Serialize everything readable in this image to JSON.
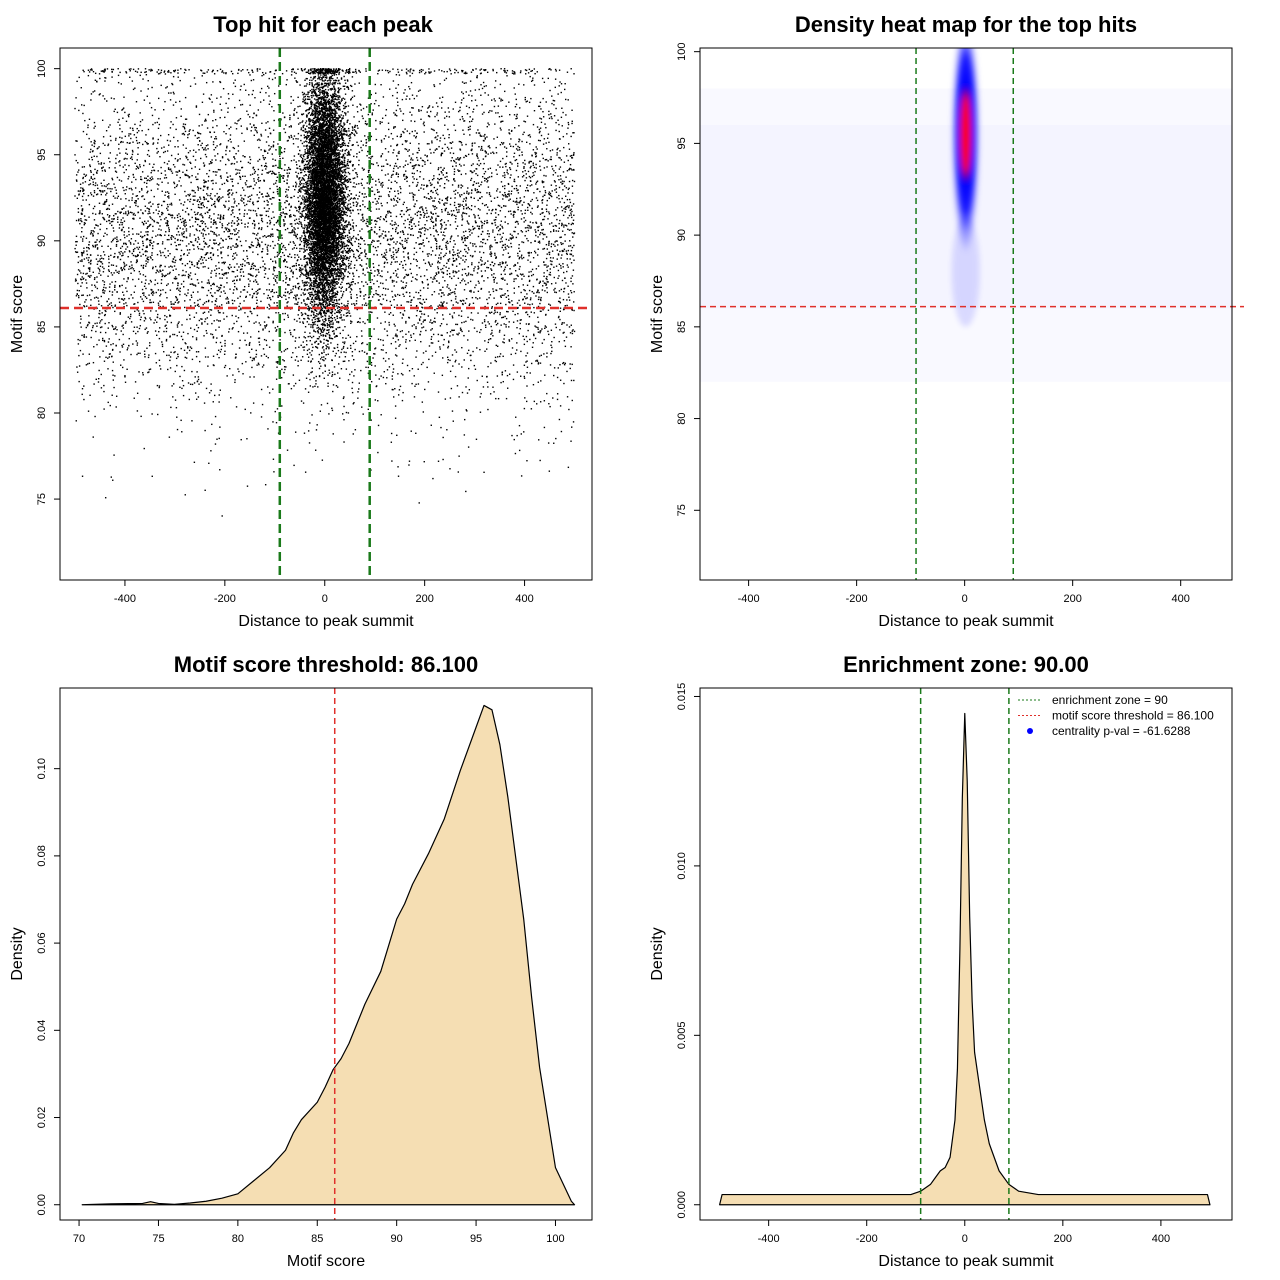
{
  "colors": {
    "scatter_point": "#000000",
    "threshold_line": "#e0302b",
    "zone_line": "#1a7a1a",
    "density_fill": "#f5deb3",
    "heat_low": "#ffffff",
    "heat_mid": "#0000ff",
    "heat_high": "#ff0000"
  },
  "chart_data": [
    {
      "type": "scatter",
      "title": "Top hit for each peak",
      "xlabel": "Distance to peak summit",
      "ylabel": "Motif score",
      "xlim": [
        -530,
        535
      ],
      "ylim": [
        70.3,
        101.2
      ],
      "xticks": [
        -400,
        -200,
        0,
        200,
        400
      ],
      "yticks": [
        75,
        80,
        85,
        90,
        95,
        100
      ],
      "xtick_labels": [
        "-400",
        "-200",
        "0",
        "200",
        "400"
      ],
      "ytick_labels": [
        "75",
        "80",
        "85",
        "90",
        "95",
        "100"
      ],
      "threshold": 86.1,
      "enrichment_zone": 90,
      "distribution": {
        "x_range": [
          -500,
          500
        ],
        "background_score_mean": 90.5,
        "background_score_sd": 5,
        "central_x_sd": 20,
        "central_score_mean": 92.5,
        "central_score_sd": 3.5,
        "n_points": 16000
      },
      "grid": false
    },
    {
      "type": "heatmap",
      "title": "Density heat map for the top hits",
      "xlabel": "Distance to peak summit",
      "ylabel": "Motif score",
      "xlim": [
        -490,
        495
      ],
      "ylim": [
        71.2,
        100.2
      ],
      "xticks": [
        -400,
        -200,
        0,
        200,
        400
      ],
      "yticks": [
        75,
        80,
        85,
        90,
        95,
        100
      ],
      "xtick_labels": [
        "-400",
        "-200",
        "0",
        "200",
        "400"
      ],
      "ytick_labels": [
        "75",
        "80",
        "85",
        "90",
        "95",
        "100"
      ],
      "threshold": 86.1,
      "enrichment_zone": 90,
      "hotspot": {
        "x": 2,
        "y": 95.5,
        "x_sd": 10,
        "y_sd": 2.5
      },
      "grid": false
    },
    {
      "type": "area",
      "title": "Motif score threshold: 86.100",
      "xlabel": "Motif score",
      "ylabel": "Density",
      "xlim": [
        68.8,
        102.3
      ],
      "ylim": [
        -0.0035,
        0.1185
      ],
      "xticks": [
        70,
        75,
        80,
        85,
        90,
        95,
        100
      ],
      "yticks": [
        0,
        0.02,
        0.04,
        0.06,
        0.08,
        0.1
      ],
      "xtick_labels": [
        "70",
        "75",
        "80",
        "85",
        "90",
        "95",
        "100"
      ],
      "ytick_labels": [
        "0.00",
        "0.02",
        "0.04",
        "0.06",
        "0.08",
        "0.10"
      ],
      "threshold": 86.1,
      "x": [
        70.2,
        72,
        74,
        74.5,
        75,
        76,
        77,
        78,
        79,
        80,
        81,
        82,
        83,
        83.5,
        84,
        85,
        85.5,
        86,
        86.5,
        87,
        87.5,
        88,
        89,
        89.5,
        90,
        90.5,
        91,
        92,
        93,
        94,
        95,
        95.5,
        96,
        96.5,
        97,
        98,
        98.5,
        99,
        100,
        101,
        101.2
      ],
      "values": [
        0.0,
        0.0002,
        0.0003,
        0.0007,
        0.0003,
        0.0001,
        0.0004,
        0.0008,
        0.0015,
        0.0025,
        0.0055,
        0.0085,
        0.0125,
        0.0165,
        0.0195,
        0.0235,
        0.027,
        0.031,
        0.0335,
        0.037,
        0.0415,
        0.046,
        0.0535,
        0.0595,
        0.0655,
        0.069,
        0.0735,
        0.0805,
        0.0885,
        0.0995,
        0.1095,
        0.1145,
        0.1135,
        0.1055,
        0.0935,
        0.0655,
        0.0475,
        0.0315,
        0.0085,
        0.0008,
        0.0
      ]
    },
    {
      "type": "area",
      "title": "Enrichment zone: 90.00",
      "xlabel": "Distance to peak summit",
      "ylabel": "Density",
      "xlim": [
        -540,
        545
      ],
      "ylim": [
        -0.00045,
        0.01525
      ],
      "xticks": [
        -400,
        -200,
        0,
        200,
        400
      ],
      "yticks": [
        0,
        0.005,
        0.01,
        0.015
      ],
      "xtick_labels": [
        "-400",
        "-200",
        "0",
        "200",
        "400"
      ],
      "ytick_labels": [
        "0.000",
        "0.005",
        "0.010",
        "0.015"
      ],
      "enrichment_zone": 90,
      "x": [
        -500,
        -495,
        -480,
        -450,
        -400,
        -350,
        -300,
        -250,
        -200,
        -150,
        -110,
        -90,
        -70,
        -60,
        -50,
        -40,
        -30,
        -20,
        -15,
        -10,
        -5,
        0,
        5,
        10,
        15,
        20,
        30,
        40,
        50,
        70,
        90,
        110,
        150,
        200,
        250,
        300,
        350,
        400,
        450,
        480,
        495,
        500
      ],
      "values": [
        0.0,
        0.0003,
        0.0003,
        0.0003,
        0.0003,
        0.0003,
        0.0003,
        0.0003,
        0.0003,
        0.0003,
        0.0003,
        0.0004,
        0.0006,
        0.0008,
        0.001,
        0.0011,
        0.0014,
        0.0025,
        0.004,
        0.0075,
        0.012,
        0.0145,
        0.0125,
        0.0085,
        0.006,
        0.0045,
        0.0035,
        0.0025,
        0.0018,
        0.001,
        0.0006,
        0.0004,
        0.0003,
        0.0003,
        0.0003,
        0.0003,
        0.0003,
        0.0003,
        0.0003,
        0.0003,
        0.0003,
        0.0
      ],
      "legend": {
        "position": "top-right",
        "entries": [
          {
            "label": "enrichment zone = 90",
            "style": "dotted-line",
            "color": "#1a7a1a"
          },
          {
            "label": "motif score threshold = 86.100",
            "style": "dotted-line",
            "color": "#e0302b"
          },
          {
            "label": "centrality p-val = -61.6288",
            "style": "point",
            "color": "#0000ff"
          }
        ]
      }
    }
  ]
}
